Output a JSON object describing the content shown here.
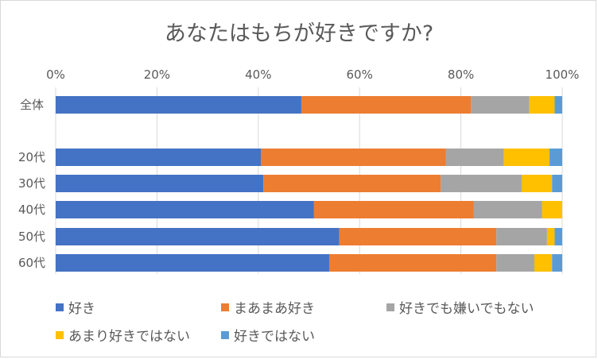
{
  "chart_data": {
    "type": "bar",
    "orientation": "horizontal",
    "stacked": "percent",
    "title": "あなたはもちが好きですか?",
    "categories": [
      "全体",
      "20代",
      "30代",
      "40代",
      "50代",
      "60代"
    ],
    "series": [
      {
        "name": "好き",
        "color": "#4472C4",
        "values": [
          48.5,
          40.5,
          41.0,
          51.0,
          56.0,
          54.0
        ]
      },
      {
        "name": "まあまあ好き",
        "color": "#ED7D31",
        "values": [
          33.5,
          36.5,
          35.0,
          31.5,
          31.0,
          33.0
        ]
      },
      {
        "name": "好きでも嫌いでもない",
        "color": "#A5A5A5",
        "values": [
          11.5,
          11.5,
          16.0,
          13.5,
          10.0,
          7.5
        ]
      },
      {
        "name": "あまり好きではない",
        "color": "#FFC000",
        "values": [
          5.0,
          9.0,
          6.0,
          4.0,
          1.5,
          3.5
        ]
      },
      {
        "name": "好きではない",
        "color": "#5B9BD5",
        "values": [
          1.5,
          2.5,
          2.0,
          0.0,
          1.5,
          2.0
        ]
      }
    ],
    "xlim": [
      0,
      100
    ],
    "xticks": [
      "0%",
      "20%",
      "40%",
      "60%",
      "80%",
      "100%"
    ],
    "grid": true,
    "legend_position": "bottom"
  }
}
